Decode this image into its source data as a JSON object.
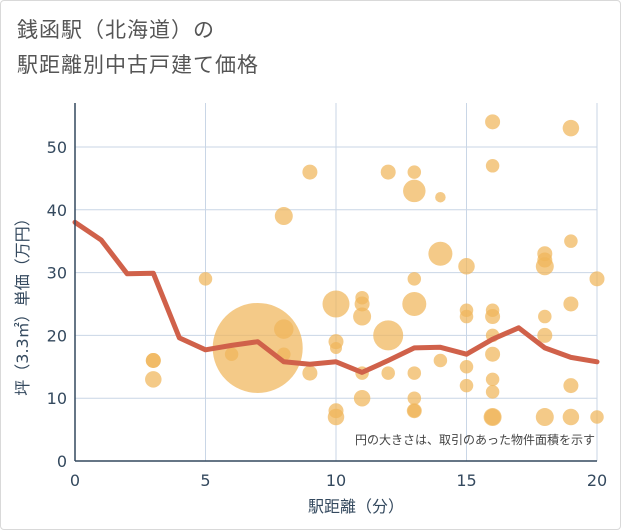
{
  "title": {
    "line1": "銭函駅（北海道）の",
    "line2": "駅距離別中古戸建て価格"
  },
  "note": "円の大きさは、取引のあった物件面積を示す",
  "colors": {
    "bubble": "#f0b55a",
    "line": "#d0614a",
    "grid": "#c9d6e6",
    "axis": "#34495e"
  },
  "chart_data": {
    "type": "scatter",
    "xlabel": "駅距離（分）",
    "ylabel": "坪（3.3㎡）単価（万円）",
    "xlim": [
      0,
      20
    ],
    "ylim": [
      0,
      57
    ],
    "xticks": [
      0,
      5,
      10,
      15,
      20
    ],
    "yticks": [
      0,
      10,
      20,
      30,
      40,
      50
    ],
    "grid": true,
    "bubble_size_meaning": "物件面積",
    "points": [
      {
        "x": 3,
        "y": 16,
        "s": 1.0
      },
      {
        "x": 3,
        "y": 16,
        "s": 1.0
      },
      {
        "x": 3,
        "y": 13,
        "s": 1.1
      },
      {
        "x": 5,
        "y": 29,
        "s": 0.9
      },
      {
        "x": 6,
        "y": 17,
        "s": 0.9
      },
      {
        "x": 7,
        "y": 18,
        "s": 6.0
      },
      {
        "x": 8,
        "y": 39,
        "s": 1.2
      },
      {
        "x": 8,
        "y": 21,
        "s": 1.3
      },
      {
        "x": 8,
        "y": 17,
        "s": 0.9
      },
      {
        "x": 9,
        "y": 46,
        "s": 1.0
      },
      {
        "x": 9,
        "y": 14,
        "s": 1.0
      },
      {
        "x": 10,
        "y": 25,
        "s": 1.8
      },
      {
        "x": 10,
        "y": 19,
        "s": 1.0
      },
      {
        "x": 10,
        "y": 18,
        "s": 0.8
      },
      {
        "x": 10,
        "y": 8,
        "s": 1.0
      },
      {
        "x": 10,
        "y": 7,
        "s": 1.1
      },
      {
        "x": 11,
        "y": 26,
        "s": 0.9
      },
      {
        "x": 11,
        "y": 25,
        "s": 1.0
      },
      {
        "x": 11,
        "y": 23,
        "s": 1.2
      },
      {
        "x": 11,
        "y": 14,
        "s": 0.9
      },
      {
        "x": 11,
        "y": 10,
        "s": 1.1
      },
      {
        "x": 12,
        "y": 46,
        "s": 1.0
      },
      {
        "x": 12,
        "y": 20,
        "s": 2.0
      },
      {
        "x": 12,
        "y": 14,
        "s": 0.9
      },
      {
        "x": 13,
        "y": 46,
        "s": 0.9
      },
      {
        "x": 13,
        "y": 43,
        "s": 1.5
      },
      {
        "x": 13,
        "y": 29,
        "s": 0.9
      },
      {
        "x": 13,
        "y": 25,
        "s": 1.6
      },
      {
        "x": 13,
        "y": 14,
        "s": 0.9
      },
      {
        "x": 13,
        "y": 10,
        "s": 0.9
      },
      {
        "x": 13,
        "y": 8,
        "s": 1.0
      },
      {
        "x": 13,
        "y": 8,
        "s": 0.9
      },
      {
        "x": 14,
        "y": 42,
        "s": 0.7
      },
      {
        "x": 14,
        "y": 33,
        "s": 1.6
      },
      {
        "x": 14,
        "y": 16,
        "s": 0.9
      },
      {
        "x": 15,
        "y": 31,
        "s": 1.1
      },
      {
        "x": 15,
        "y": 24,
        "s": 0.9
      },
      {
        "x": 15,
        "y": 23,
        "s": 0.9
      },
      {
        "x": 15,
        "y": 15,
        "s": 0.9
      },
      {
        "x": 15,
        "y": 12,
        "s": 0.9
      },
      {
        "x": 16,
        "y": 54,
        "s": 1.0
      },
      {
        "x": 16,
        "y": 47,
        "s": 0.9
      },
      {
        "x": 16,
        "y": 24,
        "s": 0.9
      },
      {
        "x": 16,
        "y": 23,
        "s": 1.0
      },
      {
        "x": 16,
        "y": 20,
        "s": 0.9
      },
      {
        "x": 16,
        "y": 17,
        "s": 1.0
      },
      {
        "x": 16,
        "y": 13,
        "s": 0.9
      },
      {
        "x": 16,
        "y": 11,
        "s": 0.9
      },
      {
        "x": 16,
        "y": 7,
        "s": 1.1
      },
      {
        "x": 16,
        "y": 7,
        "s": 1.2
      },
      {
        "x": 18,
        "y": 33,
        "s": 1.0
      },
      {
        "x": 18,
        "y": 32,
        "s": 1.0
      },
      {
        "x": 18,
        "y": 31,
        "s": 1.2
      },
      {
        "x": 18,
        "y": 23,
        "s": 0.9
      },
      {
        "x": 18,
        "y": 20,
        "s": 1.0
      },
      {
        "x": 18,
        "y": 7,
        "s": 1.2
      },
      {
        "x": 19,
        "y": 53,
        "s": 1.1
      },
      {
        "x": 19,
        "y": 35,
        "s": 0.9
      },
      {
        "x": 19,
        "y": 25,
        "s": 1.0
      },
      {
        "x": 19,
        "y": 12,
        "s": 1.0
      },
      {
        "x": 19,
        "y": 7,
        "s": 1.1
      },
      {
        "x": 20,
        "y": 29,
        "s": 1.0
      },
      {
        "x": 20,
        "y": 7,
        "s": 0.9
      }
    ],
    "trend_line": {
      "x": [
        0,
        1,
        2,
        3,
        4,
        5,
        6,
        7,
        8,
        9,
        10,
        11,
        12,
        13,
        14,
        15,
        16,
        17,
        18,
        19,
        20
      ],
      "y": [
        38,
        35.2,
        29.8,
        29.9,
        19.6,
        17.7,
        18.4,
        19.0,
        15.8,
        15.4,
        15.8,
        14.1,
        16.0,
        18.0,
        18.1,
        17.0,
        19.4,
        21.2,
        18.0,
        16.5,
        15.8
      ]
    }
  }
}
